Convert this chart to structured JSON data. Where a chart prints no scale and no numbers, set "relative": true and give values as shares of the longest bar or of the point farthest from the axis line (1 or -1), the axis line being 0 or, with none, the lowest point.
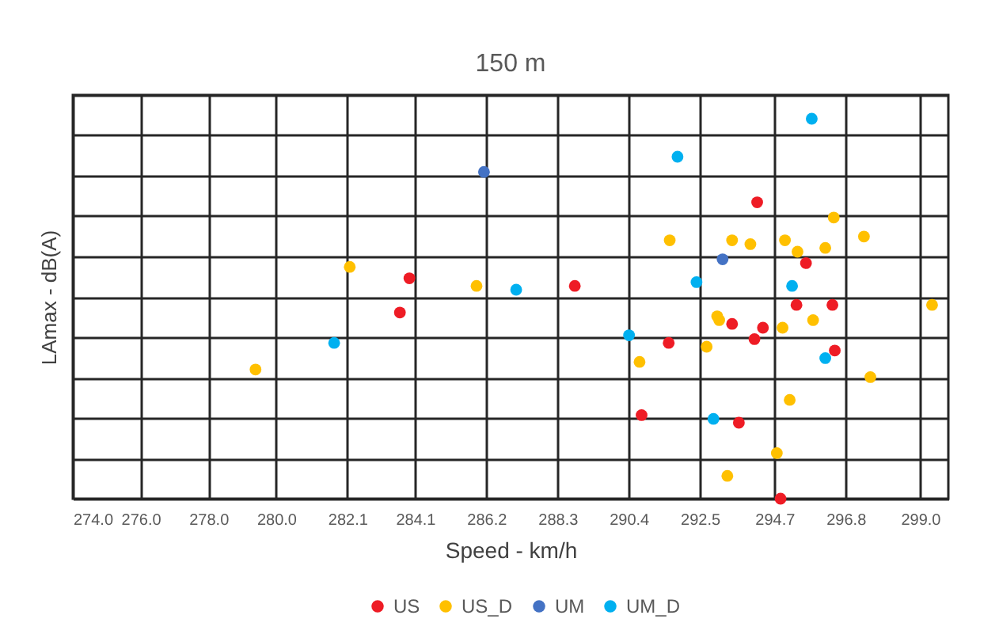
{
  "chart_data": {
    "type": "scatter",
    "title": "150 m",
    "xlabel": "Speed  - km/h",
    "ylabel": "LAmax  - dB(A)",
    "relative": true,
    "marker": "circle",
    "grid": true,
    "legend": "bottom",
    "xlim": [
      274,
      299.83
    ],
    "xticks": [
      {
        "value": 274,
        "label": "274.0"
      },
      {
        "value": 276,
        "label": "276.0"
      },
      {
        "value": 278,
        "label": "278.0"
      },
      {
        "value": 280,
        "label": "280.0"
      },
      {
        "value": 282.1,
        "label": "282.1"
      },
      {
        "value": 284.1,
        "label": "284.1"
      },
      {
        "value": 286.2,
        "label": "286.2"
      },
      {
        "value": 288.3,
        "label": "288.3"
      },
      {
        "value": 290.4,
        "label": "290.4"
      },
      {
        "value": 292.5,
        "label": "292.5"
      },
      {
        "value": 294.7,
        "label": "294.7"
      },
      {
        "value": 296.8,
        "label": "296.8"
      },
      {
        "value": 299,
        "label": "299.0"
      }
    ],
    "series": [
      {
        "name": "US",
        "color": "#ee1c25",
        "x": [
          283.93,
          283.65,
          294.19,
          295.63,
          288.81,
          295.35,
          296.41,
          293.45,
          294.36,
          294.11,
          291.58,
          296.48,
          290.78,
          293.65,
          294.88
        ],
        "values": [
          0.58,
          0.49,
          0.78,
          0.62,
          0.56,
          0.51,
          0.51,
          0.46,
          0.45,
          0.42,
          0.41,
          0.39,
          0.22,
          0.2,
          0
        ]
      },
      {
        "name": "US_D",
        "color": "#ffc000",
        "x": [
          282.17,
          285.91,
          279.39,
          296.45,
          291.61,
          293.45,
          293.99,
          295.01,
          295.38,
          296.2,
          297.34,
          299.35,
          293.01,
          293.07,
          295.84,
          294.94,
          292.7,
          290.72,
          297.53,
          295.15,
          294.77,
          293.31
        ],
        "values": [
          0.61,
          0.56,
          0.34,
          0.74,
          0.68,
          0.68,
          0.67,
          0.68,
          0.65,
          0.66,
          0.69,
          0.51,
          0.48,
          0.47,
          0.47,
          0.45,
          0.4,
          0.36,
          0.32,
          0.26,
          0.12,
          0.06
        ]
      },
      {
        "name": "UM",
        "color": "#4472c4",
        "x": [
          286.13,
          293.17
        ],
        "values": [
          0.86,
          0.63
        ]
      },
      {
        "name": "UM_D",
        "color": "#00b0f0",
        "x": [
          287.08,
          281.71,
          295.8,
          291.84,
          292.4,
          295.22,
          290.41,
          296.2,
          292.9
        ],
        "values": [
          0.55,
          0.41,
          1,
          0.9,
          0.57,
          0.56,
          0.43,
          0.37,
          0.21
        ]
      }
    ]
  }
}
